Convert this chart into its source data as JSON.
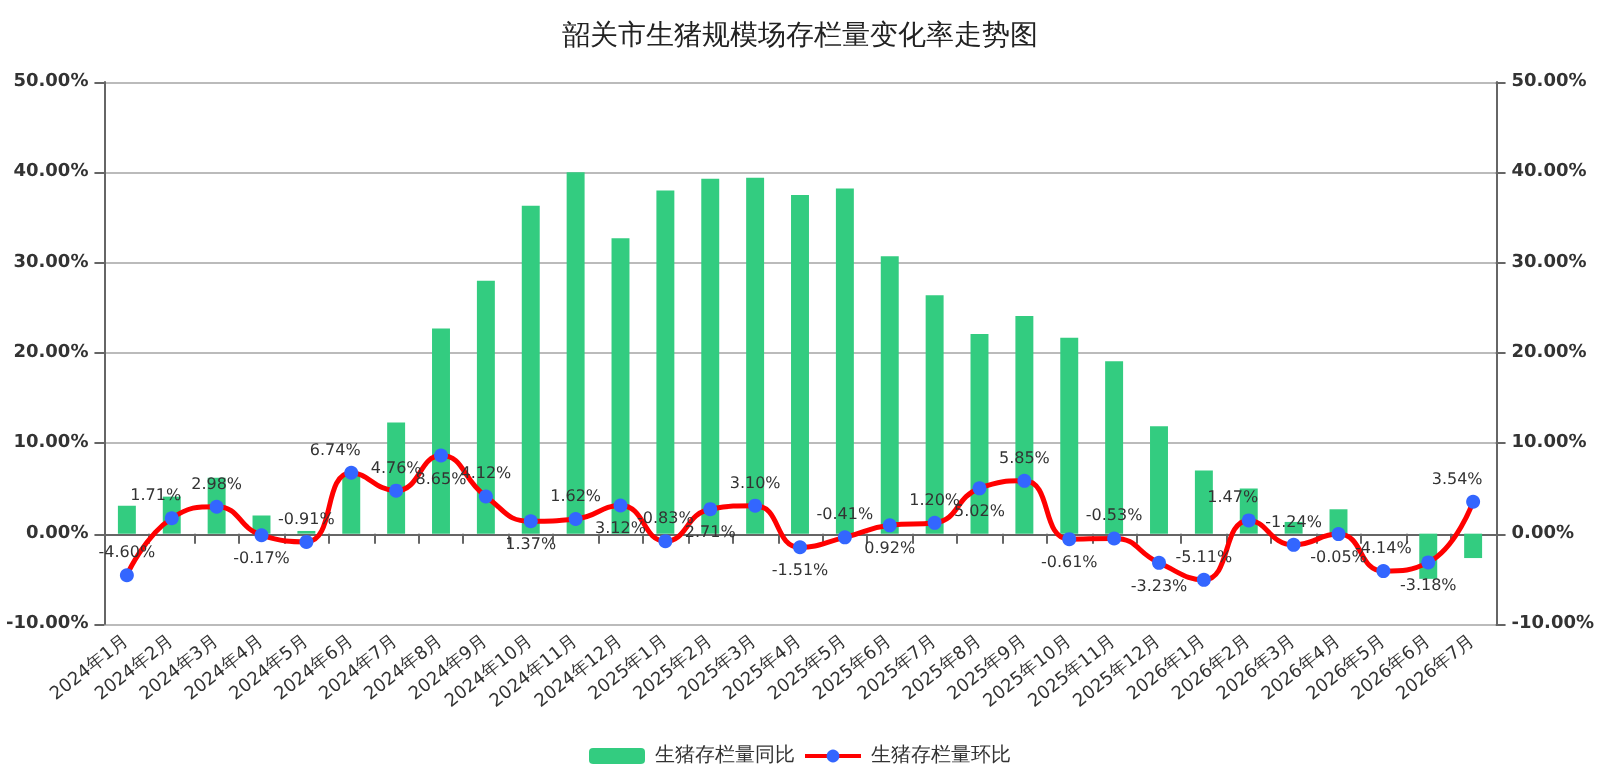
{
  "chart_data": {
    "type": "bar",
    "title": "韶关市生猪规模场存栏量变化率走势图",
    "categories": [
      "2024年1月",
      "2024年2月",
      "2024年3月",
      "2024年4月",
      "2024年5月",
      "2024年6月",
      "2024年7月",
      "2024年8月",
      "2024年9月",
      "2024年10月",
      "2024年11月",
      "2024年12月",
      "2025年1月",
      "2025年2月",
      "2025年3月",
      "2025年4月",
      "2025年5月",
      "2025年6月",
      "2025年7月",
      "2025年8月",
      "2025年9月",
      "2025年10月",
      "2025年11月",
      "2025年12月",
      "2026年1月",
      "2026年2月",
      "2026年3月",
      "2026年4月",
      "2026年5月",
      "2026年6月",
      "2026年7月"
    ],
    "series": [
      {
        "name": "生猪存栏量同比",
        "type": "bar",
        "color": "#33cc80",
        "values": [
          3.1,
          4.1,
          6.2,
          2.0,
          0.3,
          6.5,
          12.3,
          22.7,
          28.0,
          36.3,
          40.0,
          32.7,
          38.0,
          39.3,
          39.4,
          37.5,
          38.2,
          30.7,
          26.4,
          22.1,
          24.1,
          21.7,
          19.1,
          11.9,
          7.0,
          5.0,
          1.3,
          2.7,
          0,
          -5.0,
          -2.7
        ]
      },
      {
        "name": "生猪存栏量环比",
        "type": "line",
        "color": "#ff0000",
        "marker": "circle",
        "colors": [
          "#3366ff",
          "#3366ff",
          "#3366ff",
          "#3366ff",
          "#3366ff",
          "#3366ff",
          "#3366ff",
          "#3366ff",
          "#3366ff",
          "#3366ff",
          "#3366ff",
          "#3366ff",
          "#3366ff",
          "#3366ff",
          "#3366ff",
          "#3366ff",
          "#3366ff",
          "#3366ff",
          "#3366ff",
          "#3366ff",
          "#3366ff",
          "#3366ff",
          "#3366ff",
          "#3366ff",
          "#3366ff",
          "#3366ff",
          "#3366ff",
          "#3366ff",
          "#3366ff",
          "#3366ff",
          "#3366ff"
        ],
        "values": [
          -4.6,
          1.71,
          2.98,
          -0.17,
          -0.91,
          6.74,
          4.76,
          8.65,
          4.12,
          1.37,
          1.62,
          3.12,
          -0.83,
          2.71,
          3.1,
          -1.51,
          -0.41,
          0.92,
          1.2,
          5.02,
          5.85,
          -0.61,
          -0.53,
          -3.23,
          -5.11,
          1.47,
          -1.24,
          -0.05,
          -4.14,
          -3.18,
          3.54
        ],
        "value_labels": [
          "-4.60%",
          "1.71%",
          "2.98%",
          "-0.17%",
          "-0.91%",
          "6.74%",
          "4.76%",
          "8.65%",
          "4.12%",
          "1.37%",
          "1.62%",
          "3.12%",
          "-0.83%",
          "2.71%",
          "3.10%",
          "-1.51%",
          "-0.41%",
          "0.92%",
          "1.20%",
          "5.02%",
          "5.85%",
          "-0.61%",
          "-0.53%",
          "-3.23%",
          "-5.11%",
          "1.47%",
          "-1.24%",
          "-0.05%",
          "-4.14%",
          "-3.18%",
          "3.54%"
        ]
      }
    ],
    "ylim": [
      -10,
      50
    ],
    "yticks": [
      {
        "value": -10,
        "label": "-10.00%"
      },
      {
        "value": 0,
        "label": "0.00%"
      },
      {
        "value": 10,
        "label": "10.00%"
      },
      {
        "value": 20,
        "label": "20.00%"
      },
      {
        "value": 30,
        "label": "30.00%"
      },
      {
        "value": 40,
        "label": "40.00%"
      },
      {
        "value": 50,
        "label": "50.00%"
      }
    ],
    "y2lim": [
      -10,
      50
    ],
    "y2ticks": [
      {
        "value": -10,
        "label": "-10.00%"
      },
      {
        "value": 0,
        "label": "0.00%"
      },
      {
        "value": 10,
        "label": "10.00%"
      },
      {
        "value": 20,
        "label": "20.00%"
      },
      {
        "value": 30,
        "label": "30.00%"
      },
      {
        "value": 40,
        "label": "40.00%"
      },
      {
        "value": 50,
        "label": "50.00%"
      }
    ],
    "grid": "y",
    "legend": "bottom"
  }
}
